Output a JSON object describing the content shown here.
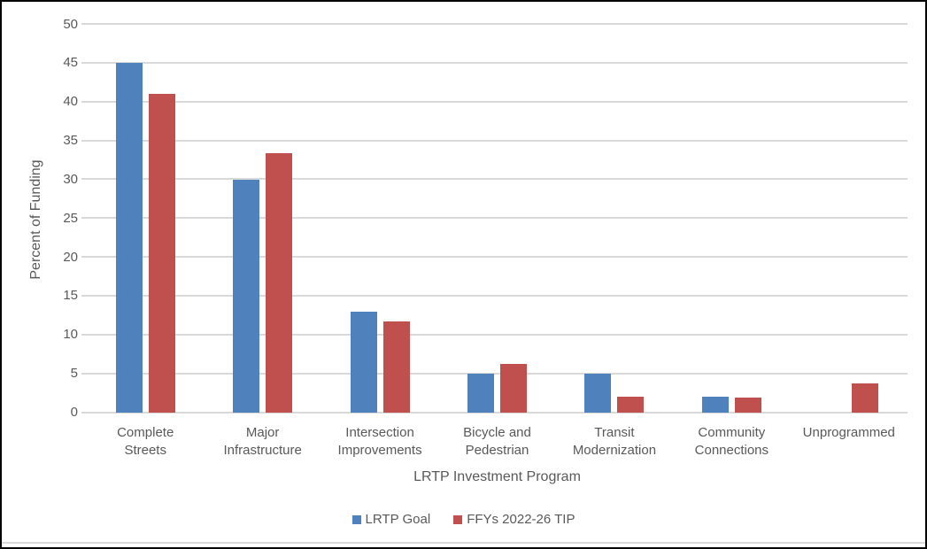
{
  "chart_data": {
    "type": "bar",
    "title": "",
    "xlabel": "LRTP Investment Program",
    "ylabel": "Percent of Funding",
    "ylim": [
      0,
      50
    ],
    "yticks": [
      0,
      5,
      10,
      15,
      20,
      25,
      30,
      35,
      40,
      45,
      50
    ],
    "grid": true,
    "legend_position": "bottom",
    "categories": [
      "Complete Streets",
      "Major Infrastructure",
      "Intersection Improvements",
      "Bicycle and Pedestrian",
      "Transit Modernization",
      "Community Connections",
      "Unprogrammed"
    ],
    "category_label_lines": [
      [
        "Complete",
        "Streets"
      ],
      [
        "Major",
        "Infrastructure"
      ],
      [
        "Intersection",
        "Improvements"
      ],
      [
        "Bicycle and",
        "Pedestrian"
      ],
      [
        "Transit",
        "Modernization"
      ],
      [
        "Community",
        "Connections"
      ],
      [
        "Unprogrammed"
      ]
    ],
    "series": [
      {
        "name": "LRTP Goal",
        "color": "#4F81BD",
        "values": [
          45,
          30,
          13,
          5,
          5,
          2,
          0
        ]
      },
      {
        "name": "FFYs 2022-26 TIP",
        "color": "#C0504D",
        "values": [
          41,
          33.4,
          11.7,
          6.3,
          2,
          1.9,
          3.8
        ]
      }
    ]
  },
  "colors": {
    "text": "#595959",
    "gridline": "#D9D9D9",
    "background": "#FFFFFF",
    "border": "#000000"
  }
}
